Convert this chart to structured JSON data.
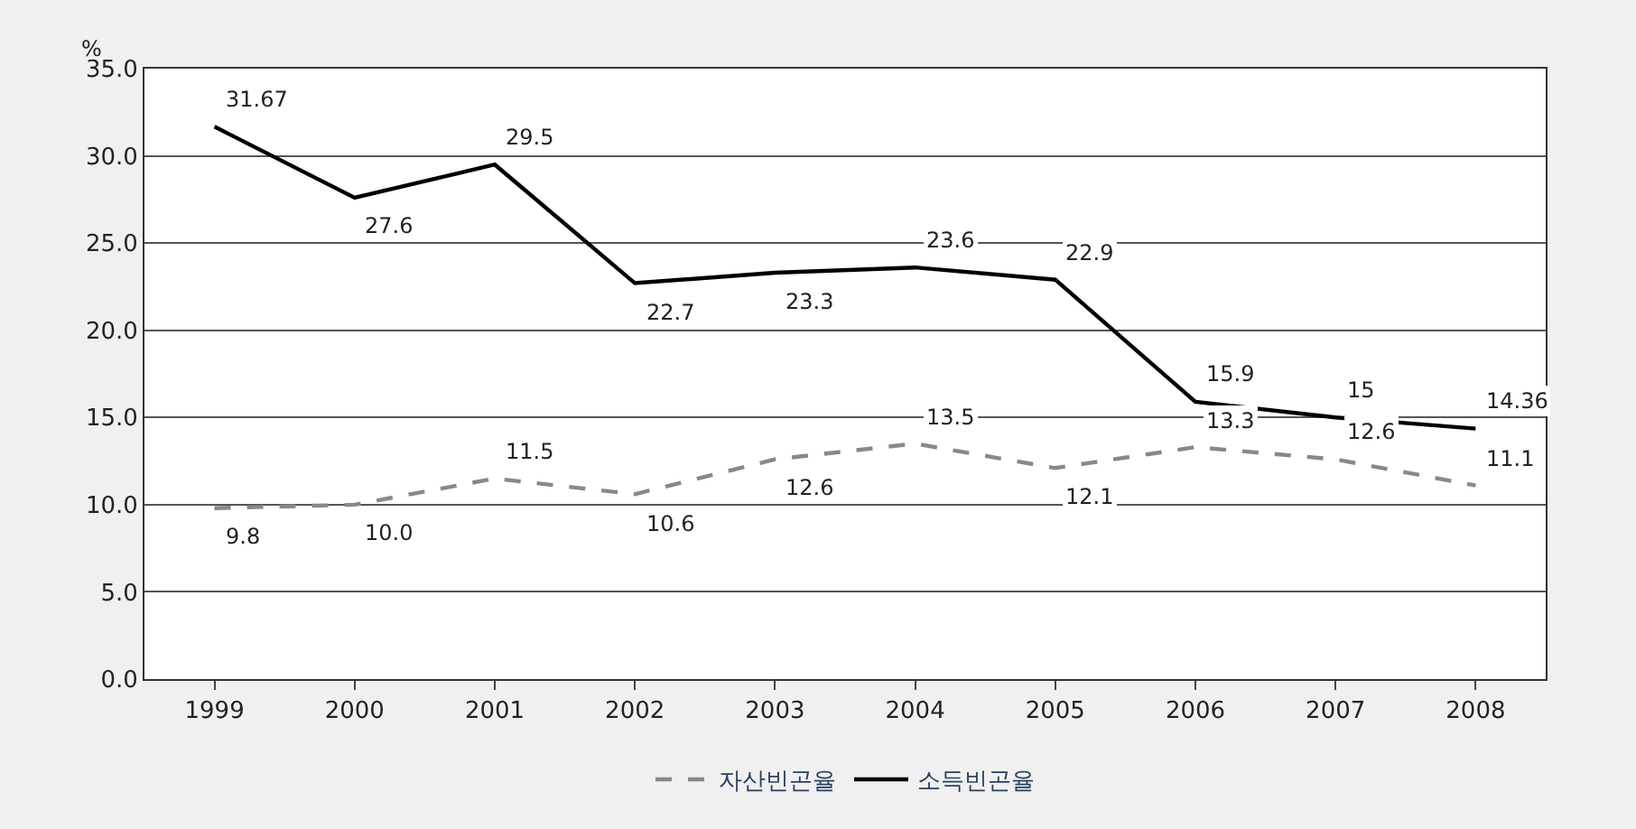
{
  "chart_data": {
    "type": "line",
    "ylabel": "%",
    "categories": [
      "1999",
      "2000",
      "2001",
      "2002",
      "2003",
      "2004",
      "2005",
      "2006",
      "2007",
      "2008"
    ],
    "series": [
      {
        "name": "자산빈곤율",
        "color": "#888888",
        "line_style": "dashed",
        "values": [
          9.8,
          10.0,
          11.5,
          10.6,
          12.6,
          13.5,
          12.1,
          13.3,
          12.6,
          11.1
        ],
        "value_labels": [
          "9.8",
          "10.0",
          "11.5",
          "10.6",
          "12.6",
          "13.5",
          "12.1",
          "13.3",
          "12.6",
          "11.1"
        ]
      },
      {
        "name": "소득빈곤율",
        "color": "#000000",
        "line_style": "solid",
        "values": [
          31.67,
          27.6,
          29.5,
          22.7,
          23.3,
          23.6,
          22.9,
          15.9,
          15,
          14.36
        ],
        "value_labels": [
          "31.67",
          "27.6",
          "29.5",
          "22.7",
          "23.3",
          "23.6",
          "22.9",
          "15.9",
          "15",
          "14.36"
        ]
      }
    ],
    "ylim": [
      0,
      35
    ],
    "yticks": [
      {
        "value": 0,
        "label": "0.0"
      },
      {
        "value": 5,
        "label": "5.0"
      },
      {
        "value": 10,
        "label": "10.0"
      },
      {
        "value": 15,
        "label": "15.0"
      },
      {
        "value": 20,
        "label": "20.0"
      },
      {
        "value": 25,
        "label": "25.0"
      },
      {
        "value": 30,
        "label": "30.0"
      },
      {
        "value": 35,
        "label": "35.0"
      }
    ],
    "grid": "y",
    "legend": "bottom",
    "marker": "none"
  }
}
